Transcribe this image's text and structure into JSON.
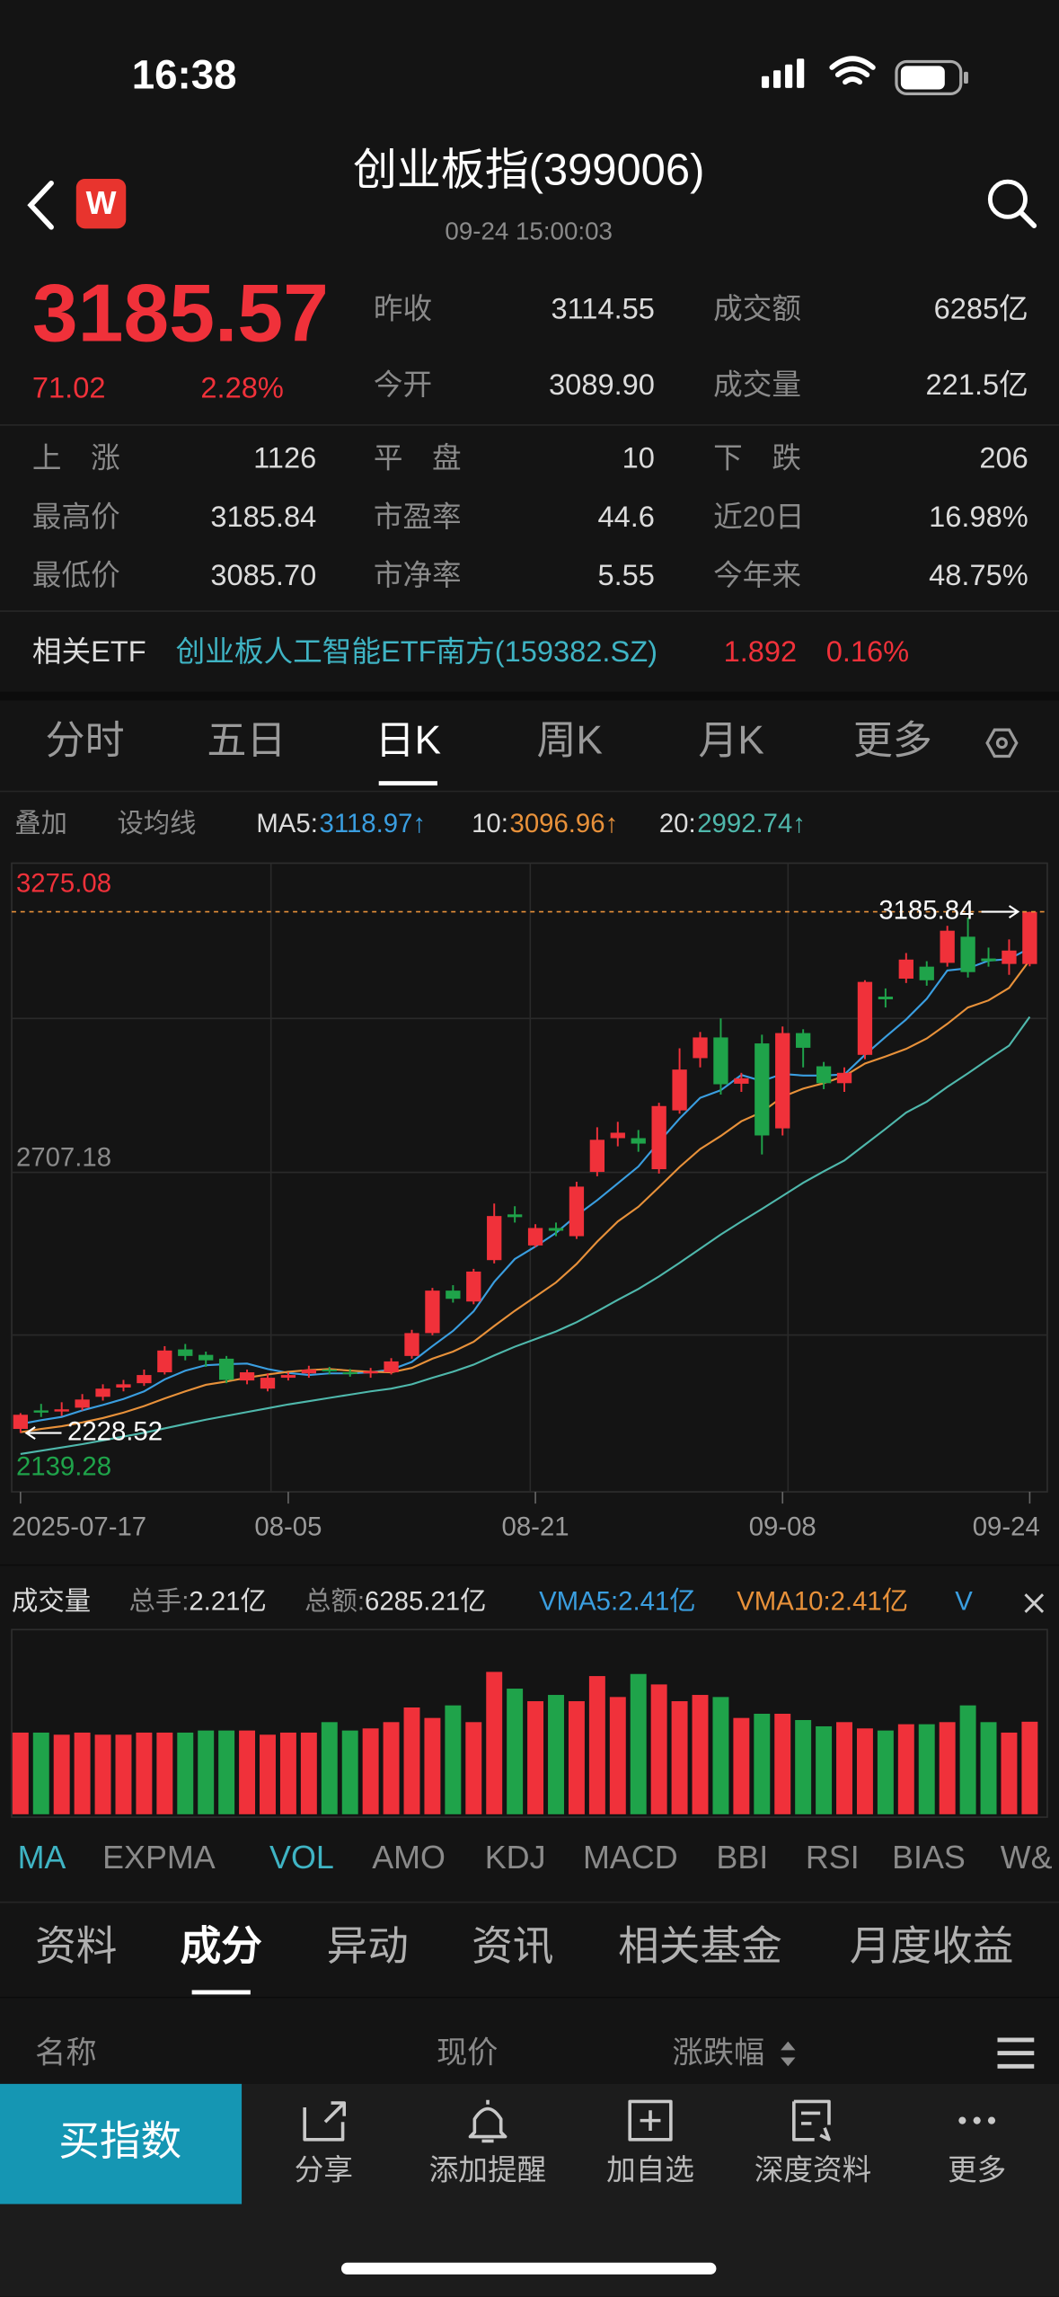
{
  "status_bar": {
    "time": "16:38"
  },
  "header": {
    "logo": "W",
    "title": "创业板指(399006)",
    "subtitle": "09-24 15:00:03"
  },
  "quote": {
    "price": "3185.57",
    "change": "71.02",
    "change_pct": "2.28%",
    "stats_top": [
      {
        "label": "昨收",
        "value": "3114.55"
      },
      {
        "label": "成交额",
        "value": "6285亿"
      },
      {
        "label": "今开",
        "value": "3089.90"
      },
      {
        "label": "成交量",
        "value": "221.5亿"
      }
    ],
    "stats_grid": [
      {
        "label": "上　涨",
        "value": "1126"
      },
      {
        "label": "平　盘",
        "value": "10"
      },
      {
        "label": "下　跌",
        "value": "206"
      },
      {
        "label": "最高价",
        "value": "3185.84"
      },
      {
        "label": "市盈率",
        "value": "44.6"
      },
      {
        "label": "近20日",
        "value": "16.98%"
      },
      {
        "label": "最低价",
        "value": "3085.70"
      },
      {
        "label": "市净率",
        "value": "5.55"
      },
      {
        "label": "今年来",
        "value": "48.75%"
      }
    ]
  },
  "etf": {
    "label": "相关ETF",
    "name": "创业板人工智能ETF南方(159382.SZ)",
    "price": "1.892",
    "change_pct": "0.16%"
  },
  "period_tabs": {
    "items": [
      "分时",
      "五日",
      "日K",
      "周K",
      "月K",
      "更多"
    ],
    "active": 2
  },
  "ma_bar": {
    "overlay": "叠加",
    "set_ma": "设均线"
  },
  "chart_data": [
    {
      "type": "candlestick",
      "up_color": "#f0313a",
      "down_color": "#1fa34a",
      "categories": [
        "2025-07-17",
        null,
        null,
        null,
        null,
        null,
        null,
        null,
        null,
        null,
        null,
        null,
        null,
        "08-05",
        null,
        null,
        null,
        null,
        null,
        null,
        null,
        null,
        null,
        null,
        null,
        "08-21",
        null,
        null,
        null,
        null,
        null,
        null,
        null,
        null,
        null,
        null,
        null,
        "09-08",
        null,
        null,
        null,
        null,
        null,
        null,
        null,
        null,
        null,
        null,
        null,
        "09-24"
      ],
      "open": [
        2236,
        2270,
        2268,
        2275,
        2295,
        2312,
        2320,
        2340,
        2382,
        2372,
        2365,
        2325,
        2310,
        2330,
        2338,
        2345,
        2340,
        2338,
        2340,
        2370,
        2412,
        2490,
        2470,
        2546,
        2630,
        2573,
        2605,
        2590,
        2708,
        2770,
        2770,
        2713,
        2821,
        2917,
        2955,
        2870,
        2944,
        2788,
        2963,
        2902,
        2871,
        2923,
        3030,
        3063,
        3085,
        3092,
        3140,
        3100,
        3090,
        3089.9
      ],
      "high": [
        2265,
        2282,
        2285,
        2300,
        2318,
        2326,
        2345,
        2388,
        2392,
        2378,
        2370,
        2345,
        2338,
        2340,
        2352,
        2350,
        2346,
        2348,
        2366,
        2418,
        2495,
        2500,
        2530,
        2650,
        2645,
        2612,
        2615,
        2690,
        2790,
        2800,
        2785,
        2835,
        2935,
        2965,
        2990,
        2890,
        2960,
        2975,
        2970,
        2910,
        2900,
        3060,
        3045,
        3110,
        3095,
        3160,
        3175,
        3120,
        3135,
        3185.84
      ],
      "low": [
        2228.52,
        2258,
        2260,
        2270,
        2288,
        2305,
        2315,
        2336,
        2362,
        2350,
        2320,
        2318,
        2305,
        2325,
        2330,
        2336,
        2332,
        2330,
        2336,
        2365,
        2408,
        2468,
        2465,
        2540,
        2615,
        2570,
        2590,
        2585,
        2700,
        2755,
        2745,
        2705,
        2815,
        2900,
        2850,
        2855,
        2740,
        2775,
        2900,
        2860,
        2855,
        2915,
        3010,
        3055,
        3050,
        3085,
        3065,
        3085,
        3070,
        3085.7
      ],
      "close": [
        2262,
        2266,
        2272,
        2290,
        2310,
        2318,
        2335,
        2380,
        2370,
        2362,
        2326,
        2340,
        2330,
        2335,
        2345,
        2342,
        2338,
        2342,
        2360,
        2412,
        2490,
        2475,
        2525,
        2627,
        2625,
        2605,
        2600,
        2681,
        2767,
        2780,
        2760,
        2829,
        2896,
        2955,
        2869,
        2880,
        2775,
        2963,
        2936,
        2871,
        2890,
        3057,
        3025,
        3098,
        3060,
        3151,
        3075,
        3095,
        3114.55,
        3185.57
      ],
      "series": [
        {
          "name": "MA5:",
          "color": "#3a9ee0",
          "legend_value": "3118.97↑",
          "values": [
            2245,
            2252,
            2258,
            2270,
            2280,
            2291,
            2305,
            2327,
            2343,
            2353,
            2355,
            2356,
            2346,
            2339,
            2335,
            2338,
            2338,
            2340,
            2345,
            2359,
            2388,
            2416,
            2452,
            2506,
            2548,
            2571,
            2596,
            2628,
            2656,
            2687,
            2718,
            2763,
            2806,
            2844,
            2858,
            2886,
            2875,
            2888,
            2885,
            2885,
            2887,
            2923,
            2956,
            2988,
            3026,
            3078,
            3082,
            3096,
            3099,
            3118.97
          ]
        },
        {
          "name": "10:",
          "color": "#e8913a",
          "legend_value": "3096.96↑",
          "values": [
            2230,
            2236,
            2241,
            2248,
            2256,
            2266,
            2278,
            2292,
            2305,
            2317,
            2323,
            2330,
            2336,
            2341,
            2344,
            2346,
            2343,
            2341,
            2340,
            2348,
            2365,
            2378,
            2396,
            2425,
            2453,
            2479,
            2505,
            2539,
            2580,
            2617,
            2644,
            2680,
            2717,
            2750,
            2774,
            2801,
            2818,
            2846,
            2861,
            2871,
            2884,
            2907,
            2920,
            2934,
            2953,
            2980,
            3010,
            3023,
            3046,
            3096.96
          ]
        },
        {
          "name": "20:",
          "color": "#4fb8ac",
          "legend_value": "2992.74↑",
          "values": [
            2190,
            2196,
            2202,
            2208,
            2215,
            2222,
            2229,
            2237,
            2245,
            2253,
            2260,
            2267,
            2274,
            2281,
            2287,
            2293,
            2299,
            2305,
            2310,
            2318,
            2330,
            2341,
            2354,
            2371,
            2387,
            2401,
            2415,
            2432,
            2452,
            2473,
            2493,
            2516,
            2541,
            2567,
            2593,
            2617,
            2640,
            2664,
            2688,
            2709,
            2729,
            2758,
            2787,
            2817,
            2837,
            2864,
            2889,
            2915,
            2940,
            2992.74
          ]
        }
      ],
      "ylim": [
        2139.28,
        3275.08
      ],
      "yticks": [
        2139.28,
        2707.18,
        3275.08
      ],
      "annotations": [
        {
          "label": "3185.84",
          "value": 3185.84
        },
        {
          "label": "2228.52",
          "value": 2228.52
        }
      ]
    },
    {
      "type": "bar",
      "ylim": [
        0,
        3.5
      ],
      "values": [
        1.95,
        1.95,
        1.9,
        1.95,
        1.9,
        1.9,
        1.95,
        1.95,
        1.95,
        2.0,
        2.0,
        2.0,
        1.9,
        1.95,
        1.95,
        2.2,
        2.0,
        2.05,
        2.2,
        2.55,
        2.3,
        2.6,
        2.2,
        3.4,
        3.0,
        2.7,
        2.85,
        2.7,
        3.3,
        2.8,
        3.35,
        3.1,
        2.7,
        2.85,
        2.8,
        2.3,
        2.4,
        2.4,
        2.25,
        2.1,
        2.2,
        2.05,
        2.0,
        2.15,
        2.15,
        2.2,
        2.6,
        2.2,
        1.95,
        2.21
      ]
    }
  ],
  "volume_header": {
    "title": "成交量",
    "hands_label": "总手:",
    "hands": "2.21亿",
    "amount_label": "总额:",
    "amount": "6285.21亿",
    "vma5": "VMA5:2.41亿",
    "vma10": "VMA10:2.41亿",
    "vma20": "V"
  },
  "indicator_tabs": {
    "items": [
      "MA",
      "EXPMA",
      "VOL",
      "AMO",
      "KDJ",
      "MACD",
      "BBI",
      "RSI",
      "BIAS",
      "W&"
    ],
    "active": [
      0,
      2
    ]
  },
  "info_tabs": {
    "items": [
      "资料",
      "成分",
      "异动",
      "资讯",
      "相关基金",
      "月度收益"
    ],
    "active": 1
  },
  "table_header": {
    "columns": [
      "名称",
      "现价",
      "涨跌幅"
    ]
  },
  "bottom_bar": {
    "primary": "买指数",
    "actions": [
      "分享",
      "添加提醒",
      "加自选",
      "深度资料",
      "更多"
    ]
  }
}
